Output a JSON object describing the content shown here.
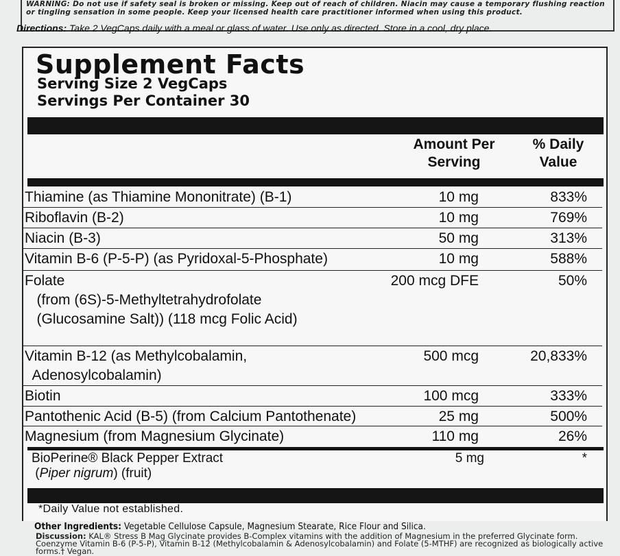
{
  "warning": "WARNING: Do not use if safety seal is broken or missing. Keep out of reach of children. Niacin may cause a temporary flushing reaction or tingling sensation in some people. Keep your licensed health care practitioner informed when using this product.",
  "directions": {
    "label": "Directions:",
    "text": " Take 2 VegCaps daily with a meal or glass of water. Use only as directed. Store in a cool, dry place."
  },
  "facts": {
    "title": "Supplement Facts",
    "serving_size": "Serving Size 2 VegCaps",
    "servings_per_container": "Servings Per Container 30",
    "col_amount": "Amount Per Serving",
    "col_dv": "% Daily Value",
    "rows": [
      {
        "name": "Thiamine (as Thiamine Mononitrate) (B-1)",
        "amount": "10 mg",
        "dv": "833%"
      },
      {
        "name": "Riboflavin (B-2)",
        "amount": "10 mg",
        "dv": "769%"
      },
      {
        "name": "Niacin (B-3)",
        "amount": "50 mg",
        "dv": "313%"
      },
      {
        "name": "Vitamin B-6 (P-5-P) (as Pyridoxal-5-Phosphate)",
        "amount": "10 mg",
        "dv": "588%"
      },
      {
        "name": "Folate\n   (from (6S)-5-Methyltetrahydrofolate\n   (Glucosamine Salt)) (118 mcg Folic Acid)",
        "amount": "200 mcg DFE",
        "dv": "50%"
      },
      {
        "name": "Vitamin B-12 (as Methylcobalamin,\n  Adenosylcobalamin)",
        "amount": "500 mcg",
        "dv": "20,833%"
      },
      {
        "name": "Biotin",
        "amount": "100 mcg",
        "dv": "333%"
      },
      {
        "name": "Pantothenic Acid (B-5) (from Calcium Pantothenate)",
        "amount": "25 mg",
        "dv": "500%"
      },
      {
        "name": "Magnesium (from Magnesium Glycinate)",
        "amount": "110 mg",
        "dv": "26%"
      }
    ],
    "extra": {
      "name": "BioPerine® Black Pepper Extract",
      "source_italic": "Piper nigrum",
      "source_rest": " (fruit)",
      "amount": "5 mg",
      "dv": "*"
    },
    "footnote": "*Daily Value not established."
  },
  "other_ingredients": {
    "label": "Other Ingredients:",
    "text": " Vegetable Cellulose Capsule, Magnesium Stearate, Rice Flour and Silica."
  },
  "discussion": {
    "label": "Discussion:",
    "text": " KAL® Stress B Mag Glycinate provides B-Complex vitamins with the addition of Magnesium in the preferred Glycinate form. Coenzyme Vitamin B-6 (P-5-P), Vitamin B-12 (Methylcobalamin & Adenosylcobalamin) and Folate (5-MTHF) are recognized as biologically active forms.† Vegan."
  }
}
